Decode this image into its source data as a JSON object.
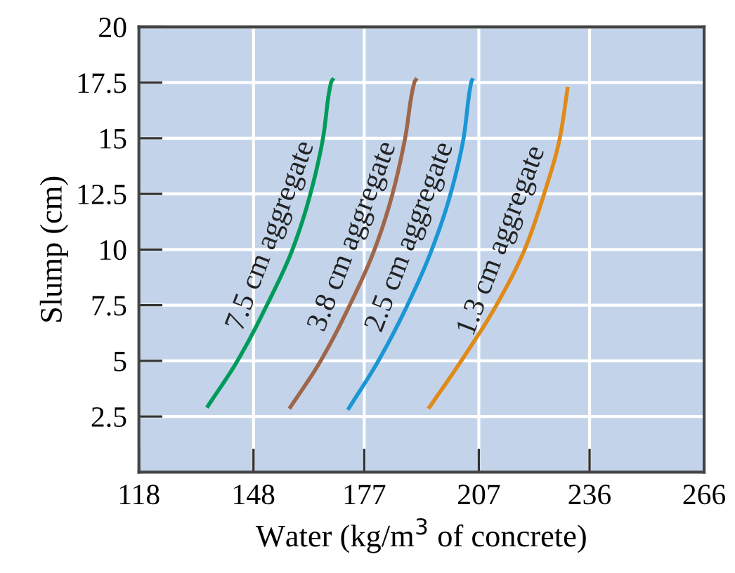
{
  "chart_data": {
    "type": "line",
    "xlabel": "Water (kg/m$^{3}$ of concrete)",
    "ylabel": "Slump (cm)",
    "xlim": [
      118,
      266
    ],
    "xticks": [
      118,
      148,
      177,
      207,
      236,
      266
    ],
    "ylim": [
      0,
      20
    ],
    "yticks": [
      2.5,
      5,
      7.5,
      10,
      12.5,
      15,
      17.5,
      20
    ],
    "grid": true,
    "marker": "none",
    "line_style": "solid",
    "series": [
      {
        "name": "7.5 cm aggregate",
        "color": "#009a5a",
        "x": [
          135.8,
          143.8,
          151.5,
          158.2,
          162.9,
          166.2,
          168.3,
          169.0
        ],
        "values": [
          2.9,
          5,
          7.5,
          10,
          12.5,
          15,
          17.5,
          17.7
        ]
      },
      {
        "name": "3.8 cm aggregate",
        "color": "#a0664a",
        "x": [
          157.4,
          165.6,
          173.2,
          179.7,
          184.4,
          187.7,
          190.1,
          190.8
        ],
        "values": [
          2.85,
          5,
          7.5,
          10,
          12.5,
          15,
          17.5,
          17.7
        ]
      },
      {
        "name": "2.5 cm aggregate",
        "color": "#1a96d4",
        "x": [
          172.7,
          180.7,
          188.3,
          194.7,
          199.6,
          203.0,
          205.0,
          205.5
        ],
        "values": [
          2.8,
          5,
          7.5,
          10,
          12.5,
          15,
          17.5,
          17.7
        ]
      },
      {
        "name": "1.3 cm aggregate",
        "color": "#e08a1a",
        "x": [
          193.8,
          202.4,
          211.6,
          219.0,
          224.1,
          228.2,
          230.3
        ],
        "values": [
          2.85,
          5,
          7.5,
          10,
          12.5,
          15,
          17.3
        ]
      }
    ]
  }
}
